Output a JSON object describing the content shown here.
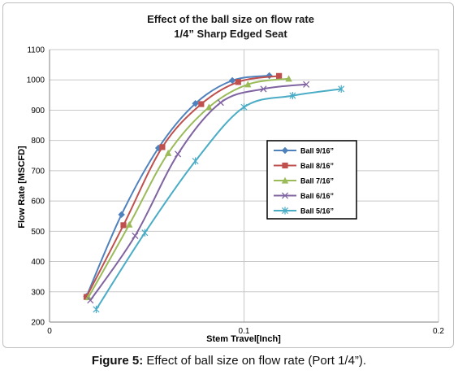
{
  "chart_data": {
    "type": "line",
    "title": "Effect of the ball size on flow rate",
    "subtitle": "1/4” Sharp Edged Seat",
    "xlabel": "Stem Travel[Inch]",
    "ylabel": "Flow Rate [MSCFD]",
    "xlim": [
      0,
      0.2
    ],
    "ylim": [
      200,
      1100
    ],
    "x_ticks": [
      "0",
      "0.1",
      "0.2"
    ],
    "y_ticks": [
      "200",
      "300",
      "400",
      "500",
      "600",
      "700",
      "800",
      "900",
      "1000",
      "1100"
    ],
    "grid": true,
    "legend_position": "right-middle",
    "series": [
      {
        "name": "Ball 9/16”",
        "color": "#4f81bd",
        "marker": "diamond",
        "x": [
          0.019,
          0.037,
          0.056,
          0.075,
          0.094,
          0.113
        ],
        "y": [
          285,
          555,
          775,
          922,
          998,
          1014
        ]
      },
      {
        "name": "Ball 8/16”",
        "color": "#c0504d",
        "marker": "square",
        "x": [
          0.019,
          0.038,
          0.058,
          0.078,
          0.097,
          0.118
        ],
        "y": [
          283,
          520,
          778,
          920,
          993,
          1013
        ]
      },
      {
        "name": "Ball 7/16”",
        "color": "#9bbb59",
        "marker": "triangle",
        "x": [
          0.02,
          0.041,
          0.061,
          0.082,
          0.102,
          0.123
        ],
        "y": [
          282,
          522,
          758,
          910,
          985,
          1004
        ]
      },
      {
        "name": "Ball 6/16”",
        "color": "#8064a2",
        "marker": "x",
        "x": [
          0.021,
          0.044,
          0.066,
          0.088,
          0.11,
          0.132
        ],
        "y": [
          272,
          485,
          755,
          925,
          970,
          985
        ]
      },
      {
        "name": "Ball 5/16”",
        "color": "#4bacc6",
        "marker": "star",
        "x": [
          0.024,
          0.049,
          0.075,
          0.1,
          0.125,
          0.15
        ],
        "y": [
          242,
          495,
          732,
          910,
          948,
          970
        ]
      }
    ]
  },
  "caption": {
    "label": "Figure 5:",
    "text": " Effect of ball size on flow rate (Port 1/4”)."
  }
}
